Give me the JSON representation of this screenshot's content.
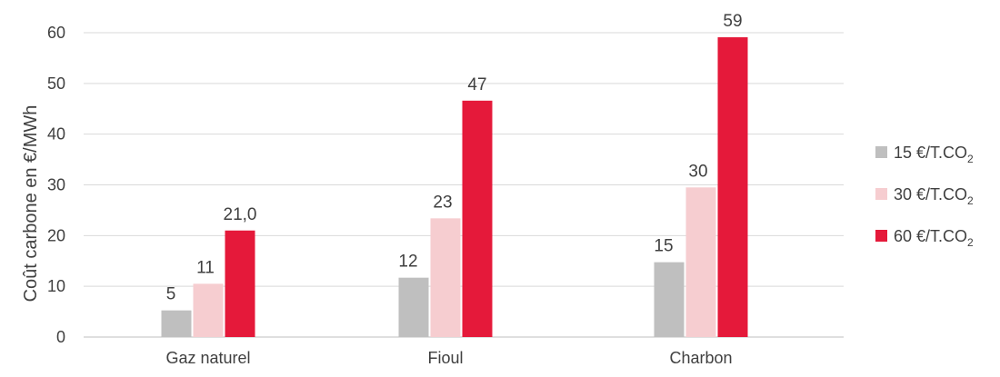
{
  "chart_data": {
    "type": "bar",
    "title": "",
    "xlabel": "",
    "ylabel": "Coût carbone en €/MWh",
    "ylim": [
      0,
      60
    ],
    "yticks": [
      0,
      10,
      20,
      30,
      40,
      50,
      60
    ],
    "grid": true,
    "legend_position": "right",
    "categories": [
      "Gaz naturel",
      "Fioul",
      "Charbon"
    ],
    "series": [
      {
        "name": "15 €/T.CO",
        "name_subscript": "2",
        "color": "#bfbfbf",
        "values": [
          5.25,
          11.7,
          14.75
        ],
        "labels": [
          "5",
          "12",
          "15"
        ]
      },
      {
        "name": "30 €/T.CO",
        "name_subscript": "2",
        "color": "#f6cdd0",
        "values": [
          10.5,
          23.4,
          29.5
        ],
        "labels": [
          "11",
          "23",
          "30"
        ]
      },
      {
        "name": "60 €/T.CO",
        "name_subscript": "2",
        "color": "#e5193a",
        "values": [
          21.0,
          46.6,
          59.1
        ],
        "labels": [
          "21,0",
          "47",
          "59"
        ]
      }
    ]
  }
}
